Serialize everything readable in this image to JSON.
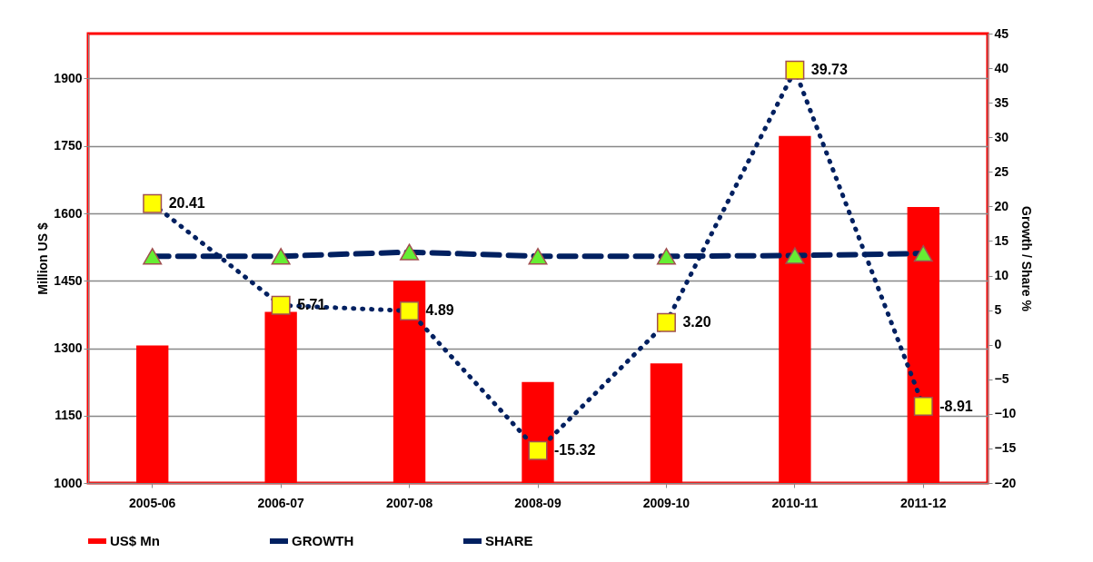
{
  "chart_data": {
    "type": "bar",
    "ylabel": "Million US $",
    "y2label": "Growth / Share %",
    "categories": [
      "2005-06",
      "2006-07",
      "2007-08",
      "2008-09",
      "2009-10",
      "2010-11",
      "2011-12"
    ],
    "series": [
      {
        "name": "US$ Mn",
        "type": "bar",
        "color": "#ff0000",
        "values": [
          1306,
          1381,
          1450,
          1225,
          1266,
          1772,
          1614
        ]
      },
      {
        "name": "GROWTH",
        "type": "line",
        "axis": "y2",
        "color": "#002060",
        "marker": "square",
        "line_style": "dotted",
        "values": [
          20.41,
          5.71,
          4.89,
          -15.32,
          3.2,
          39.73,
          -8.91
        ],
        "value_labels": [
          "20.41",
          "5.71",
          "4.89",
          "-15.32",
          "3.20",
          "39.73",
          "-8.91"
        ]
      },
      {
        "name": "SHARE",
        "type": "line",
        "axis": "y2",
        "color": "#002060",
        "marker": "triangle",
        "line_style": "dashed",
        "values": [
          12.8,
          12.8,
          13.4,
          12.8,
          12.8,
          12.9,
          13.2
        ]
      }
    ],
    "ylim": [
      1000,
      2000
    ],
    "yticks": [
      1000,
      1150,
      1300,
      1450,
      1600,
      1750,
      1900
    ],
    "y2lim": [
      -20,
      45
    ],
    "y2ticks": [
      -20,
      -15,
      -10,
      -5,
      0,
      5,
      10,
      15,
      20,
      25,
      30,
      35,
      40,
      45
    ],
    "grid": "y",
    "legend": "bottom"
  }
}
